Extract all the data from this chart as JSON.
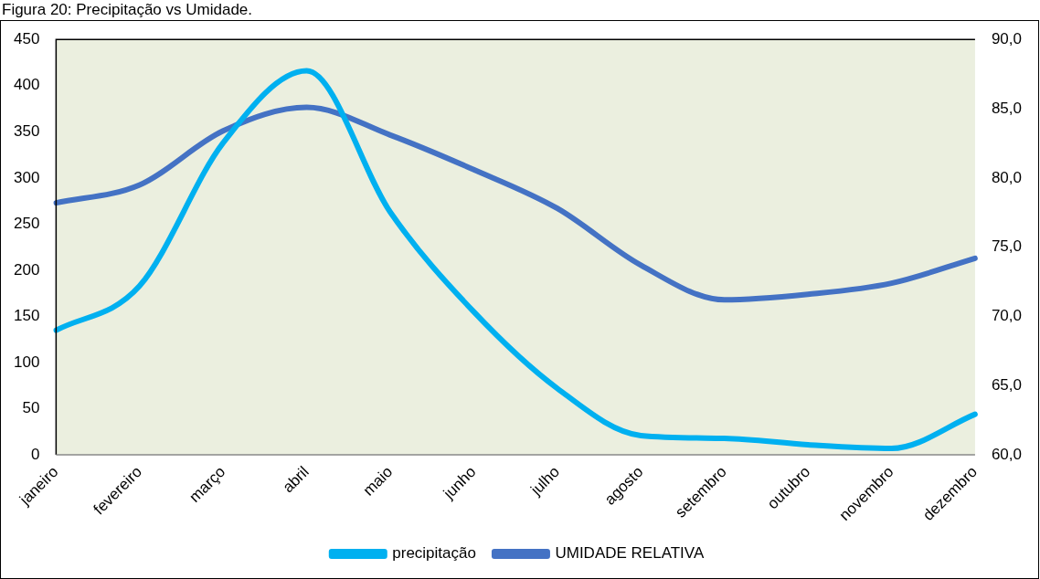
{
  "chart_data": {
    "type": "line",
    "title": "Figura 20: Precipitação vs Umidade.",
    "categories": [
      "janeiro",
      "fevereiro",
      "março",
      "abril",
      "maio",
      "junho",
      "julho",
      "agosto",
      "setembro",
      "outubro",
      "novembro",
      "dezembro"
    ],
    "series": [
      {
        "name": "precipitação",
        "color": "#00b0f0",
        "values": [
          135,
          183,
          338,
          416,
          263,
          155,
          72,
          21,
          18,
          11,
          7,
          44
        ]
      },
      {
        "name": "UMIDADE RELATIVA",
        "color": "#4472c4",
        "axis": "y2",
        "values": [
          78.2,
          79.5,
          83.4,
          85.1,
          83.1,
          80.6,
          77.8,
          73.7,
          71.2,
          71.6,
          72.4,
          74.2
        ]
      }
    ],
    "ylim": [
      0,
      450
    ],
    "yticks": [
      0,
      50,
      100,
      150,
      200,
      250,
      300,
      350,
      400,
      450
    ],
    "y2lim": [
      60,
      90
    ],
    "y2ticks": [
      {
        "value": 60,
        "label": "60,0"
      },
      {
        "value": 65,
        "label": "65,0"
      },
      {
        "value": 70,
        "label": "70,0"
      },
      {
        "value": 75,
        "label": "75,0"
      },
      {
        "value": 80,
        "label": "80,0"
      },
      {
        "value": 85,
        "label": "85,0"
      },
      {
        "value": 90,
        "label": "90,0"
      }
    ],
    "grid": false,
    "legend": "bottom",
    "marker": "none",
    "line_style": "solid"
  }
}
